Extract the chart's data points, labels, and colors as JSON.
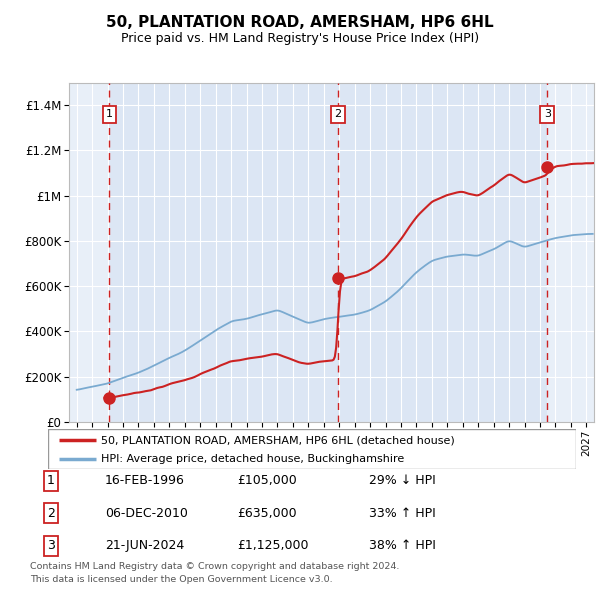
{
  "title": "50, PLANTATION ROAD, AMERSHAM, HP6 6HL",
  "subtitle": "Price paid vs. HM Land Registry's House Price Index (HPI)",
  "transactions": [
    {
      "num": 1,
      "date_label": "16-FEB-1996",
      "price": 105000,
      "pct": "29%",
      "dir": "↓",
      "x": 1996.12
    },
    {
      "num": 2,
      "date_label": "06-DEC-2010",
      "price": 635000,
      "pct": "33%",
      "dir": "↑",
      "x": 2010.92
    },
    {
      "num": 3,
      "date_label": "21-JUN-2024",
      "price": 1125000,
      "pct": "38%",
      "dir": "↑",
      "x": 2024.47
    }
  ],
  "legend_line1": "50, PLANTATION ROAD, AMERSHAM, HP6 6HL (detached house)",
  "legend_line2": "HPI: Average price, detached house, Buckinghamshire",
  "footer1": "Contains HM Land Registry data © Crown copyright and database right 2024.",
  "footer2": "This data is licensed under the Open Government Licence v3.0.",
  "table_rows": [
    [
      "1",
      "16-FEB-1996",
      "£105,000",
      "29% ↓ HPI"
    ],
    [
      "2",
      "06-DEC-2010",
      "£635,000",
      "33% ↑ HPI"
    ],
    [
      "3",
      "21-JUN-2024",
      "£1,125,000",
      "38% ↑ HPI"
    ]
  ],
  "xlim": [
    1993.5,
    2027.5
  ],
  "ylim": [
    0,
    1500000
  ],
  "yticks": [
    0,
    200000,
    400000,
    600000,
    800000,
    1000000,
    1200000,
    1400000
  ],
  "ytick_labels": [
    "£0",
    "£200K",
    "£400K",
    "£600K",
    "£800K",
    "£1M",
    "£1.2M",
    "£1.4M"
  ],
  "background_color": "#ffffff",
  "plot_bg_color": "#dce6f4",
  "side_bg_color": "#e8eff8",
  "grid_color": "#ffffff",
  "red_line_color": "#cc2222",
  "blue_line_color": "#7aaad0",
  "dashed_line_color": "#cc2222",
  "hpi_data": {
    "years": [
      1994,
      1995,
      1996,
      1997,
      1998,
      1999,
      2000,
      2001,
      2002,
      2003,
      2004,
      2005,
      2006,
      2007,
      2008,
      2009,
      2010,
      2011,
      2012,
      2013,
      2014,
      2015,
      2016,
      2017,
      2018,
      2019,
      2020,
      2021,
      2022,
      2023,
      2024,
      2025,
      2026,
      2027
    ],
    "values": [
      140000,
      155000,
      170000,
      195000,
      215000,
      245000,
      280000,
      310000,
      355000,
      400000,
      440000,
      455000,
      470000,
      490000,
      460000,
      430000,
      450000,
      460000,
      470000,
      490000,
      530000,
      590000,
      660000,
      710000,
      730000,
      740000,
      730000,
      760000,
      800000,
      770000,
      790000,
      810000,
      820000,
      825000
    ]
  }
}
